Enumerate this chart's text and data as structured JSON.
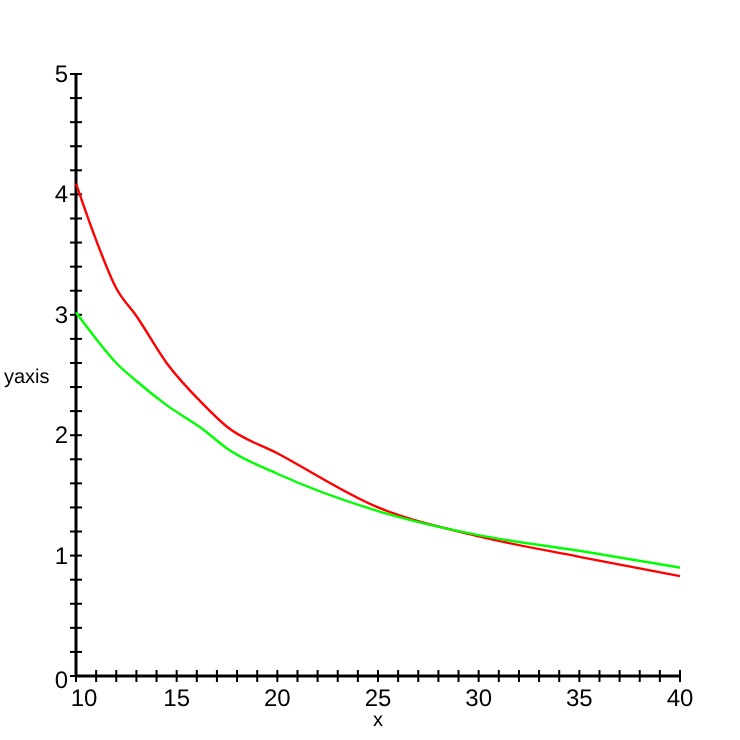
{
  "chart_data": {
    "type": "line",
    "xlabel": "x",
    "ylabel": "yaxis",
    "xlim": [
      10,
      40
    ],
    "ylim": [
      0,
      5
    ],
    "xticks": [
      10,
      {
        "value": 11,
        "label": null
      },
      {
        "value": 12,
        "label": null
      },
      {
        "value": 13,
        "label": null
      },
      {
        "value": 14,
        "label": null
      },
      15,
      {
        "value": 16,
        "label": null
      },
      {
        "value": 17,
        "label": null
      },
      {
        "value": 18,
        "label": null
      },
      {
        "value": 19,
        "label": null
      },
      20,
      {
        "value": 21,
        "label": null
      },
      {
        "value": 22,
        "label": null
      },
      {
        "value": 23,
        "label": null
      },
      {
        "value": 24,
        "label": null
      },
      25,
      {
        "value": 26,
        "label": null
      },
      {
        "value": 27,
        "label": null
      },
      {
        "value": 28,
        "label": null
      },
      {
        "value": 29,
        "label": null
      },
      30,
      {
        "value": 31,
        "label": null
      },
      {
        "value": 32,
        "label": null
      },
      {
        "value": 33,
        "label": null
      },
      {
        "value": 34,
        "label": null
      },
      35,
      {
        "value": 36,
        "label": null
      },
      {
        "value": 37,
        "label": null
      },
      {
        "value": 38,
        "label": null
      },
      {
        "value": 39,
        "label": null
      },
      40
    ],
    "yticks": [
      0,
      {
        "value": 0.2,
        "label": null
      },
      {
        "value": 0.4,
        "label": null
      },
      {
        "value": 0.6,
        "label": null
      },
      {
        "value": 0.8,
        "label": null
      },
      1,
      {
        "value": 1.2,
        "label": null
      },
      {
        "value": 1.4,
        "label": null
      },
      {
        "value": 1.6,
        "label": null
      },
      {
        "value": 1.8,
        "label": null
      },
      2,
      {
        "value": 2.2,
        "label": null
      },
      {
        "value": 2.4,
        "label": null
      },
      {
        "value": 2.6,
        "label": null
      },
      {
        "value": 2.8,
        "label": null
      },
      3,
      {
        "value": 3.2,
        "label": null
      },
      {
        "value": 3.4,
        "label": null
      },
      {
        "value": 3.6,
        "label": null
      },
      {
        "value": 3.8,
        "label": null
      },
      4,
      {
        "value": 4.2,
        "label": null
      },
      {
        "value": 4.4,
        "label": null
      },
      {
        "value": 4.6,
        "label": null
      },
      {
        "value": 4.8,
        "label": null
      },
      5
    ],
    "x": [
      10,
      11,
      12,
      13,
      14.5,
      16.3,
      17.5,
      20,
      25,
      30,
      35,
      40
    ],
    "series": [
      {
        "color": "#ff0000",
        "values": [
          4.09,
          3.62,
          3.22,
          2.99,
          2.6,
          2.26,
          2.07,
          1.85,
          1.4,
          1.16,
          0.99,
          0.83
        ]
      },
      {
        "color": "#00ff00",
        "values": [
          3.02,
          2.8,
          2.6,
          2.45,
          2.25,
          2.05,
          1.89,
          1.68,
          1.37,
          1.17,
          1.04,
          0.9
        ]
      }
    ]
  }
}
